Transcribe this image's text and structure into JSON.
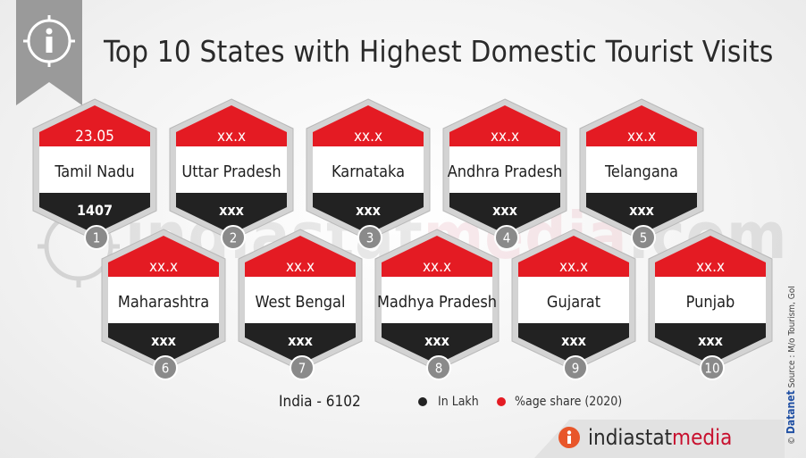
{
  "title": "Top 10 States with Highest Domestic Tourist Visits",
  "watermark": {
    "part1": "indiastat",
    "part2": "media",
    "part3": ".com"
  },
  "colors": {
    "red": "#e41b23",
    "dark": "#222222",
    "grey": "#8a8a8a",
    "hex_border": "#d3d3d3"
  },
  "icons": {
    "info": "info-icon",
    "rank_badge": "circle-badge"
  },
  "chart_data": {
    "type": "table",
    "title": "Top 10 States with Highest Domestic Tourist Visits",
    "columns": [
      "rank",
      "state",
      "percent_share_2020",
      "visits_in_lakh"
    ],
    "rows": [
      {
        "rank": "1",
        "state": "Tamil Nadu",
        "share": "23.05",
        "visits": "1407"
      },
      {
        "rank": "2",
        "state": "Uttar Pradesh",
        "share": "xx.x",
        "visits": "xxx"
      },
      {
        "rank": "3",
        "state": "Karnataka",
        "share": "xx.x",
        "visits": "xxx"
      },
      {
        "rank": "4",
        "state": "Andhra Pradesh",
        "share": "xx.x",
        "visits": "xxx"
      },
      {
        "rank": "5",
        "state": "Telangana",
        "share": "xx.x",
        "visits": "xxx"
      },
      {
        "rank": "6",
        "state": "Maharashtra",
        "share": "xx.x",
        "visits": "xxx"
      },
      {
        "rank": "7",
        "state": "West Bengal",
        "share": "xx.x",
        "visits": "xxx"
      },
      {
        "rank": "8",
        "state": "Madhya Pradesh",
        "share": "xx.x",
        "visits": "xxx"
      },
      {
        "rank": "9",
        "state": "Gujarat",
        "share": "xx.x",
        "visits": "xxx"
      },
      {
        "rank": "10",
        "state": "Punjab",
        "share": "xx.x",
        "visits": "xxx"
      }
    ]
  },
  "legend": {
    "india_total": "India  -  6102",
    "in_lakh": "In Lakh",
    "share": "%age share (2020)"
  },
  "source": {
    "brand": "Datanet",
    "text": "Source : M/o Tourism, GoI",
    "copyright": "©"
  },
  "footer": {
    "brand_part1": "indiastat",
    "brand_part2": "media"
  }
}
